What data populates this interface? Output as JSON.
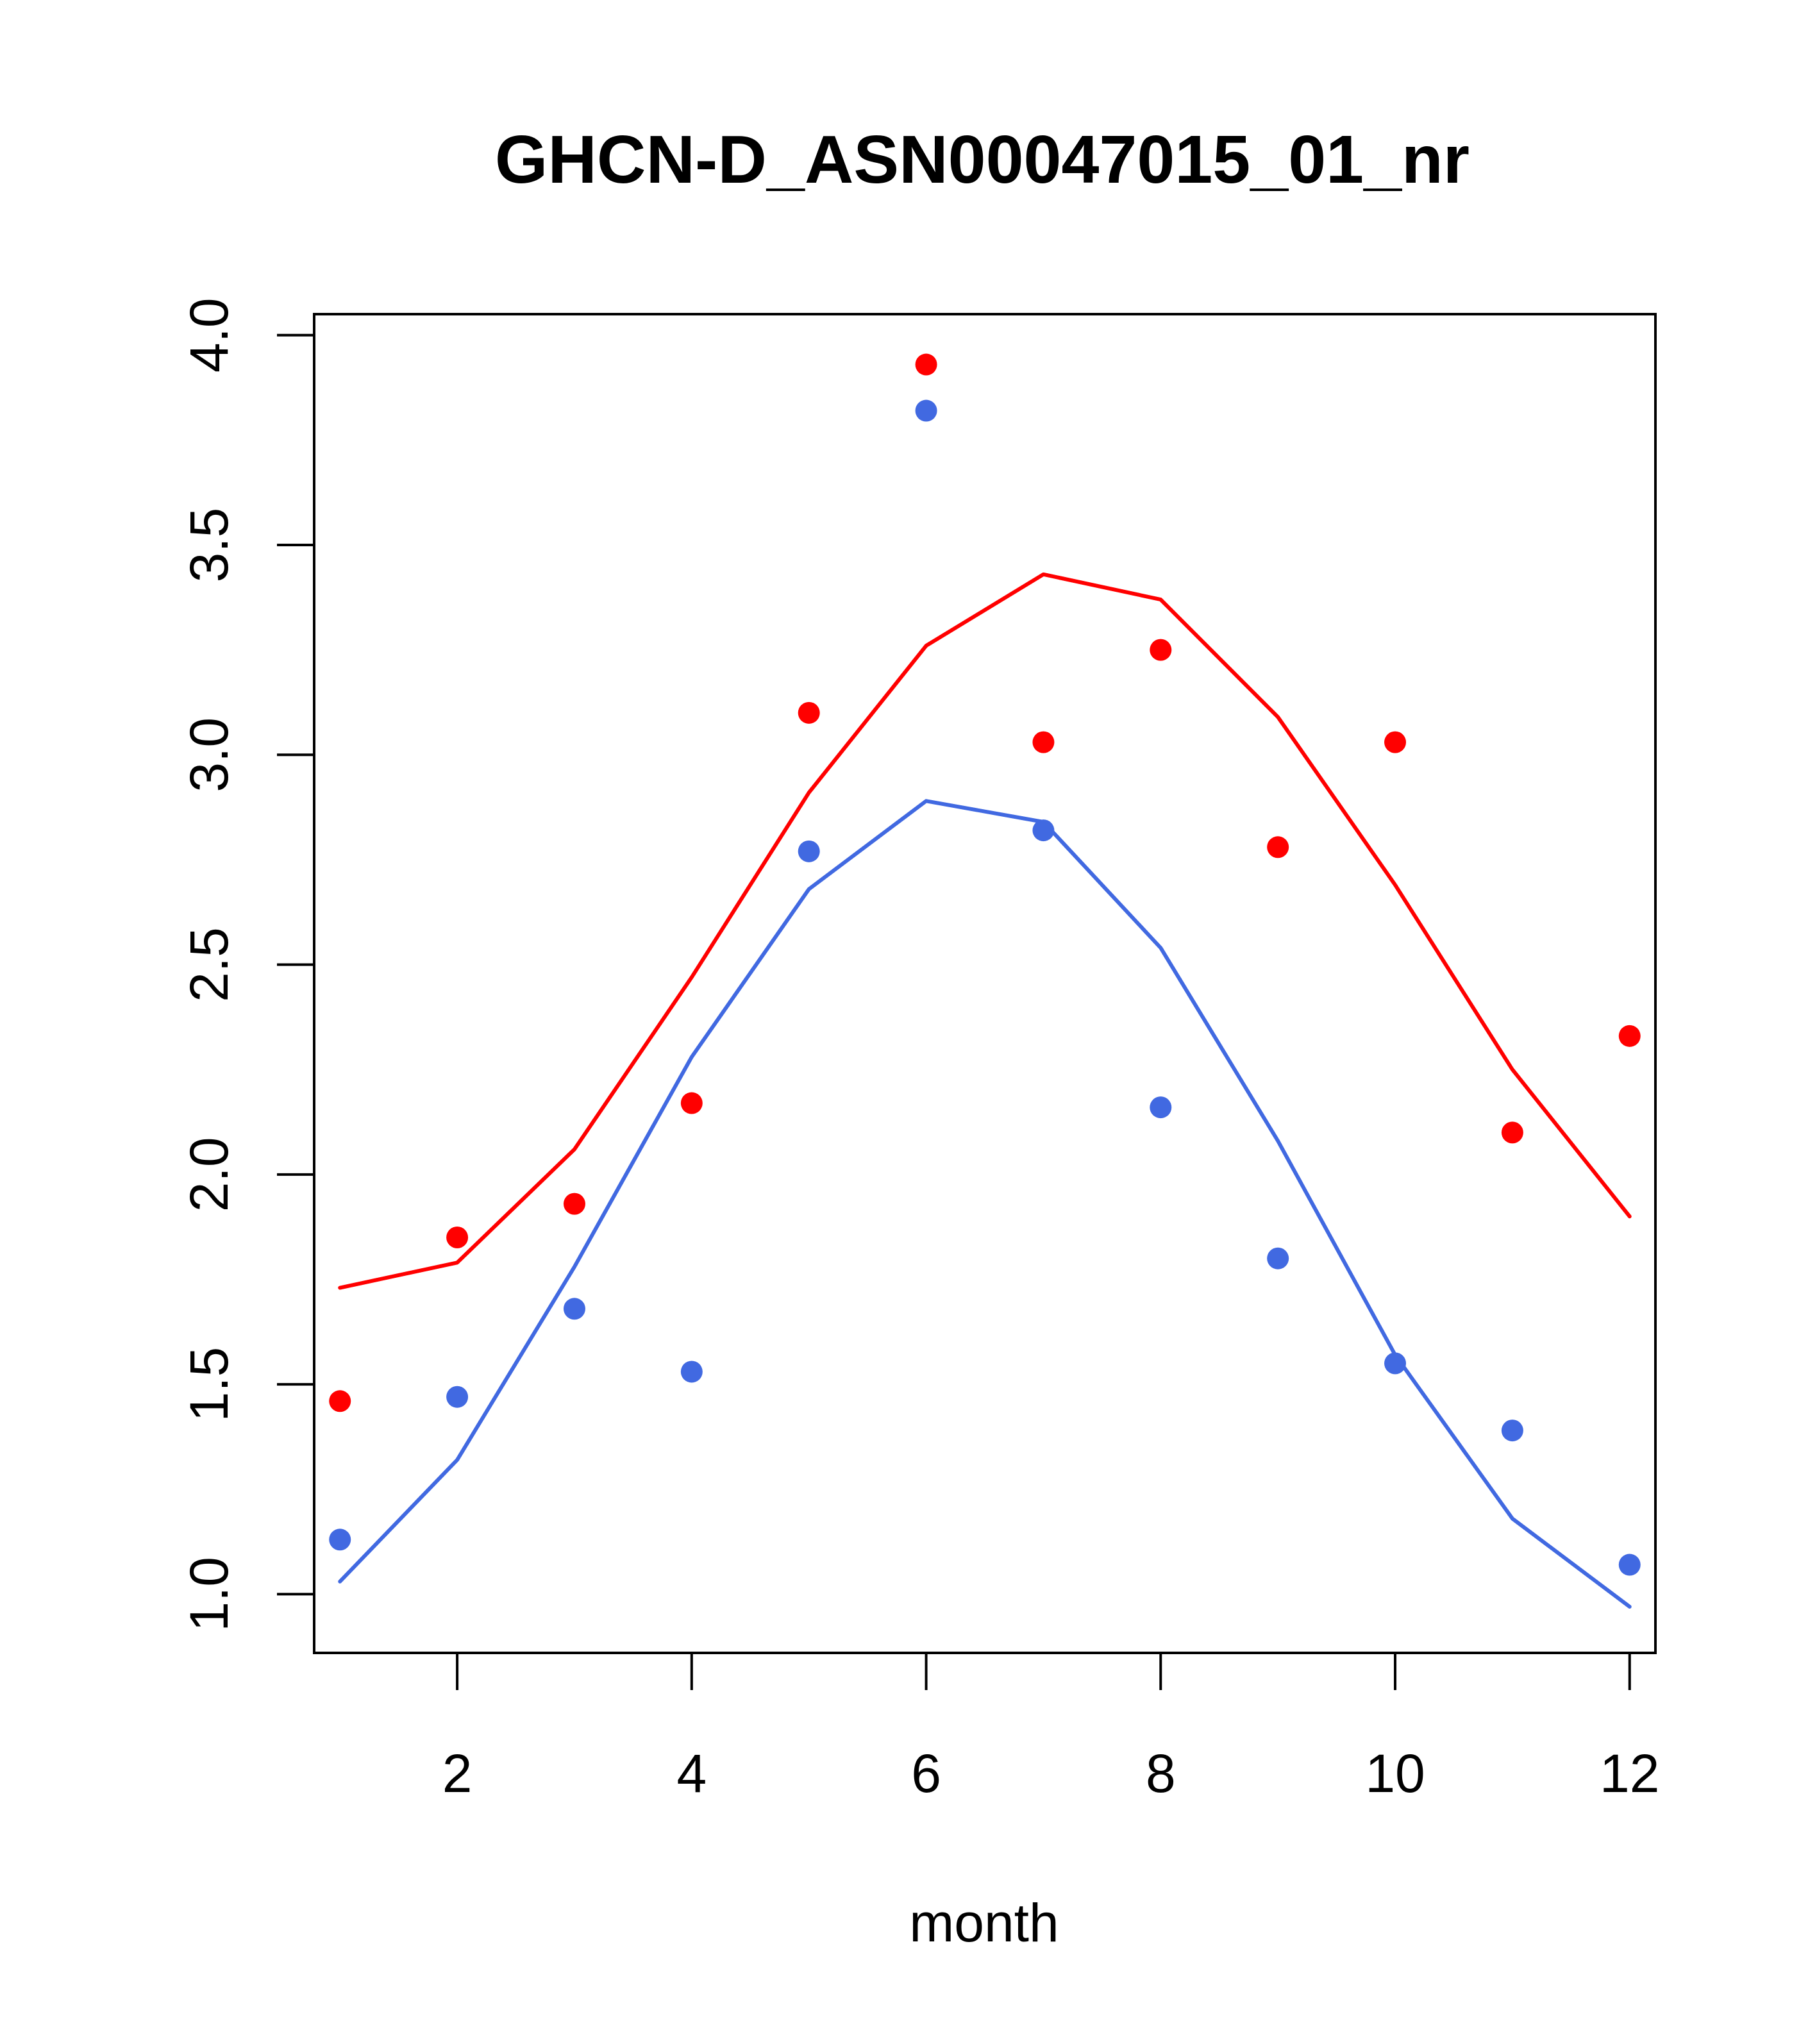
{
  "chart_data": {
    "type": "line",
    "title": "GHCN-D_ASN00047015_01_nr",
    "xlabel": "month",
    "ylabel": "",
    "xlim": [
      0.78,
      12.22
    ],
    "ylim": [
      0.86,
      4.05
    ],
    "x_ticks": [
      2,
      4,
      6,
      8,
      10,
      12
    ],
    "x_tick_labels": [
      "2",
      "4",
      "6",
      "8",
      "10",
      "12"
    ],
    "y_ticks": [
      1.0,
      1.5,
      2.0,
      2.5,
      3.0,
      3.5,
      4.0
    ],
    "y_tick_labels": [
      "1.0",
      "1.5",
      "2.0",
      "2.5",
      "3.0",
      "3.5",
      "4.0"
    ],
    "grid": false,
    "x": [
      1,
      2,
      3,
      4,
      5,
      6,
      7,
      8,
      9,
      10,
      11,
      12
    ],
    "series": [
      {
        "name": "red",
        "color": "#ff0000",
        "points": [
          1.46,
          1.85,
          1.93,
          2.17,
          3.1,
          3.93,
          3.03,
          3.25,
          2.78,
          3.03,
          2.1,
          2.33
        ],
        "line": [
          1.73,
          1.79,
          2.06,
          2.47,
          2.91,
          3.26,
          3.43,
          3.37,
          3.09,
          2.69,
          2.25,
          1.9
        ]
      },
      {
        "name": "blue",
        "color": "#4169e1",
        "points": [
          1.13,
          1.47,
          1.68,
          1.53,
          2.77,
          3.82,
          2.82,
          2.16,
          1.8,
          1.55,
          1.39,
          1.07
        ],
        "line": [
          1.03,
          1.32,
          1.78,
          2.28,
          2.68,
          2.89,
          2.84,
          2.54,
          2.08,
          1.57,
          1.18,
          0.97
        ]
      }
    ]
  }
}
